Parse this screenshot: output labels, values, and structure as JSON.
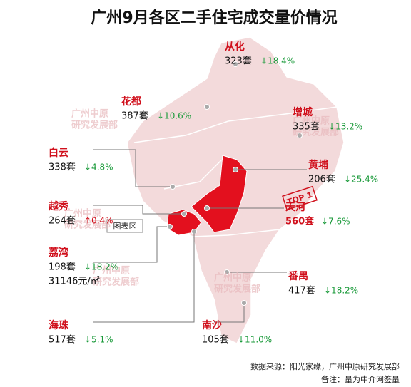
{
  "title": "广州9月各区二手住宅成交量价情况",
  "districts": [
    {
      "name": "从化",
      "volume": "323套",
      "change": "↓18.4%"
    },
    {
      "name": "花都",
      "volume": "387套",
      "change": "↓10.6%"
    },
    {
      "name": "增城",
      "volume": "335套",
      "change": "↓13.2%"
    },
    {
      "name": "白云",
      "volume": "338套",
      "change": "↓4.8%"
    },
    {
      "name": "黄埔",
      "volume": "206套",
      "change": "↓25.4%"
    },
    {
      "name": "越秀",
      "volume": "264套",
      "change": "↑0.4%"
    },
    {
      "name": "天河",
      "volume": "560套",
      "change": "↓7.6%"
    },
    {
      "name": "荔湾",
      "volume": "198套",
      "change": "↓18.2%",
      "price": "31146元/㎡"
    },
    {
      "name": "番禺",
      "volume": "417套",
      "change": "↓18.2%"
    },
    {
      "name": "海珠",
      "volume": "517套",
      "change": "↓5.1%"
    },
    {
      "name": "南沙",
      "volume": "105套",
      "change": "↓11.0%"
    }
  ],
  "stamp": "TOP 1",
  "tooltip": "图表区",
  "watermark": [
    "广州中原",
    "研究发展部"
  ],
  "source": "数据来源：阳光家缘，广州中原研究发展部",
  "note": "备注：量为中介网签量"
}
